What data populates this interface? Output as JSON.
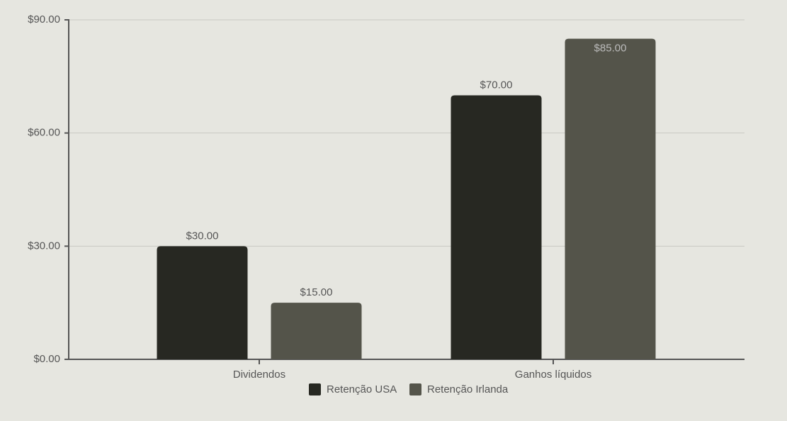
{
  "chart_data": {
    "type": "bar",
    "categories": [
      "Dividendos",
      "Ganhos líquidos"
    ],
    "series": [
      {
        "name": "Retenção USA",
        "color": "#272822",
        "values": [
          30,
          70
        ],
        "value_labels": [
          "$30.00",
          "$70.00"
        ]
      },
      {
        "name": "Retenção Irlanda",
        "color": "#54544a",
        "values": [
          15,
          85
        ],
        "value_labels": [
          "$15.00",
          "$85.00"
        ]
      }
    ],
    "ylim": [
      0,
      90
    ],
    "yticks": [
      {
        "value": 0,
        "label": "$0.00"
      },
      {
        "value": 30,
        "label": "$30.00"
      },
      {
        "value": 60,
        "label": "$60.00"
      },
      {
        "value": 90,
        "label": "$90.00"
      }
    ],
    "grid": true,
    "legend": "bottom"
  }
}
